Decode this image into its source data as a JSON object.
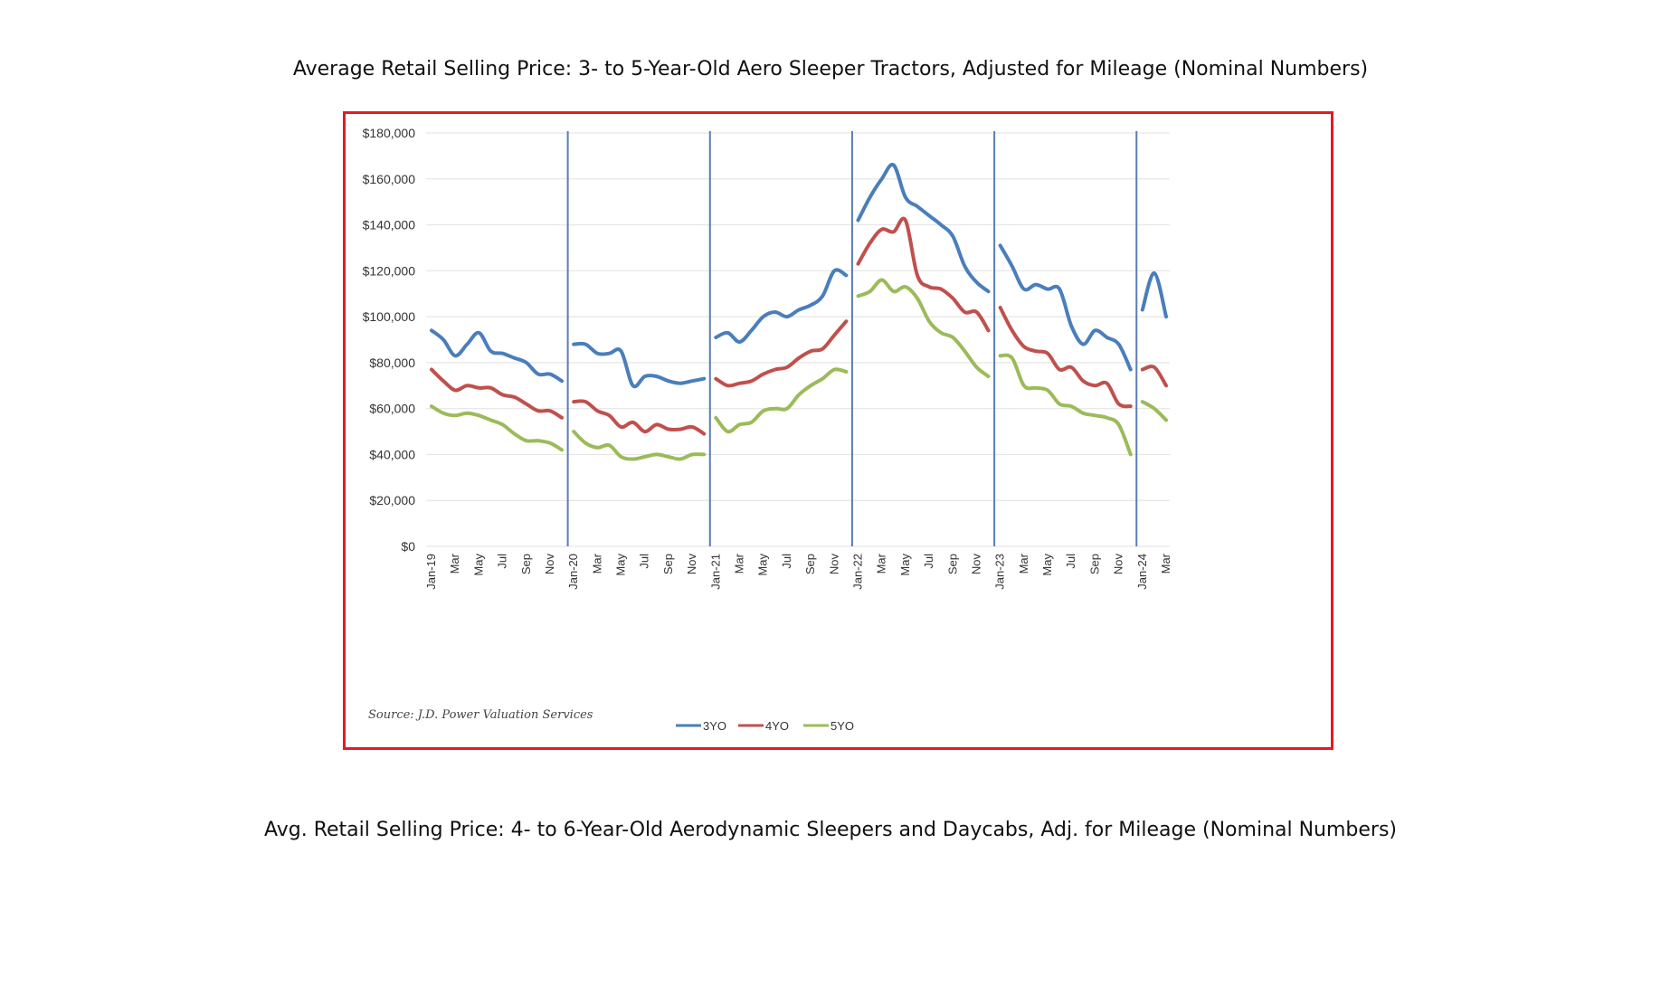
{
  "headings": {
    "top": "Average Retail Selling Price: 3- to 5-Year-Old Aero Sleeper Tractors, Adjusted for Mileage (Nominal Numbers)",
    "bottom": "Avg. Retail Selling Price: 4- to 6-Year-Old Aerodynamic Sleepers and Daycabs, Adj. for Mileage (Nominal Numbers)"
  },
  "colors": {
    "frame": "#e31b23",
    "separator": "#5b7db3",
    "grid": "#e6e6e6"
  },
  "chart_data": {
    "type": "line",
    "title": "",
    "xlabel": "",
    "ylabel": "",
    "ylim": [
      0,
      180000
    ],
    "grid": "horizontal",
    "legend_position": "bottom",
    "source": "Source: J.D. Power Valuation Services",
    "y_ticks": [
      "$0",
      "$20,000",
      "$40,000",
      "$60,000",
      "$80,000",
      "$100,000",
      "$120,000",
      "$140,000",
      "$160,000",
      "$180,000"
    ],
    "y_tick_values": [
      0,
      20000,
      40000,
      60000,
      80000,
      100000,
      120000,
      140000,
      160000,
      180000
    ],
    "x_tick_labels": [
      "Jan-19",
      "Mar",
      "May",
      "Jul",
      "Sep",
      "Nov",
      "Jan-20",
      "Mar",
      "May",
      "Jul",
      "Sep",
      "Nov",
      "Jan-21",
      "Mar",
      "May",
      "Jul",
      "Sep",
      "Nov",
      "Jan-22",
      "Mar",
      "May",
      "Jul",
      "Sep",
      "Nov",
      "Jan-23",
      "Mar",
      "May",
      "Jul",
      "Sep",
      "Nov",
      "Jan-24",
      "Mar"
    ],
    "x_tick_months": [
      0,
      2,
      4,
      6,
      8,
      10,
      12,
      14,
      16,
      18,
      20,
      22,
      24,
      26,
      28,
      30,
      32,
      34,
      36,
      38,
      40,
      42,
      44,
      46,
      48,
      50,
      52,
      54,
      56,
      58,
      60,
      62
    ],
    "year_separators": [
      12,
      24,
      36,
      48,
      60
    ],
    "series": [
      {
        "name": "3YO",
        "color": "#4a7ebb",
        "segments": [
          [
            94000,
            90000,
            83000,
            88000,
            93000,
            85000,
            84000,
            82000,
            80000,
            75000,
            75000,
            72000
          ],
          [
            88000,
            88000,
            84000,
            84000,
            85000,
            70000,
            74000,
            74000,
            72000,
            71000,
            72000,
            73000
          ],
          [
            91000,
            93000,
            89000,
            94000,
            100000,
            102000,
            100000,
            103000,
            105000,
            109000,
            120000,
            118000
          ],
          [
            142000,
            152000,
            160000,
            166000,
            152000,
            148000,
            144000,
            140000,
            135000,
            122000,
            115000,
            111000
          ],
          [
            131000,
            122000,
            112000,
            114000,
            112000,
            112000,
            96000,
            88000,
            94000,
            91000,
            88000,
            77000
          ],
          [
            103000,
            119000,
            100000
          ]
        ]
      },
      {
        "name": "4YO",
        "color": "#c0504d",
        "segments": [
          [
            77000,
            72000,
            68000,
            70000,
            69000,
            69000,
            66000,
            65000,
            62000,
            59000,
            59000,
            56000
          ],
          [
            63000,
            63000,
            59000,
            57000,
            52000,
            54000,
            50000,
            53000,
            51000,
            51000,
            52000,
            49000
          ],
          [
            73000,
            70000,
            71000,
            72000,
            75000,
            77000,
            78000,
            82000,
            85000,
            86000,
            92000,
            98000
          ],
          [
            123000,
            132000,
            138000,
            137000,
            142000,
            118000,
            113000,
            112000,
            108000,
            102000,
            102000,
            94000
          ],
          [
            104000,
            94000,
            87000,
            85000,
            84000,
            77000,
            78000,
            72000,
            70000,
            71000,
            62000,
            61000
          ],
          [
            77000,
            78000,
            70000
          ]
        ]
      },
      {
        "name": "5YO",
        "color": "#9bbb59",
        "segments": [
          [
            61000,
            58000,
            57000,
            58000,
            57000,
            55000,
            53000,
            49000,
            46000,
            46000,
            45000,
            42000
          ],
          [
            50000,
            45000,
            43000,
            44000,
            39000,
            38000,
            39000,
            40000,
            39000,
            38000,
            40000,
            40000
          ],
          [
            56000,
            50000,
            53000,
            54000,
            59000,
            60000,
            60000,
            66000,
            70000,
            73000,
            77000,
            76000
          ],
          [
            109000,
            111000,
            116000,
            111000,
            113000,
            108000,
            98000,
            93000,
            91000,
            85000,
            78000,
            74000
          ],
          [
            83000,
            82000,
            70000,
            69000,
            68000,
            62000,
            61000,
            58000,
            57000,
            56000,
            53000,
            40000
          ],
          [
            63000,
            60000,
            55000
          ]
        ]
      }
    ]
  }
}
